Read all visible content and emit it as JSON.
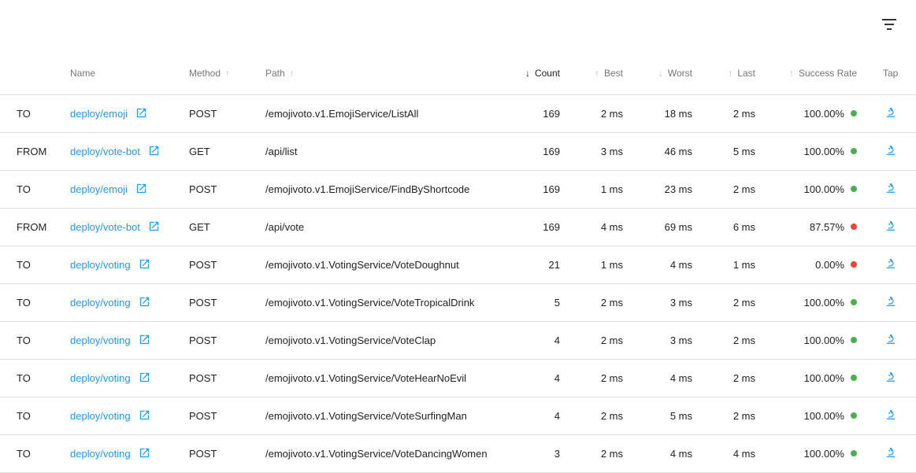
{
  "toolbar": {
    "filter_icon": "filter-list-icon"
  },
  "colors": {
    "link": "#2196f3",
    "success": "#4caf50",
    "failure": "#f44336"
  },
  "headers": {
    "direction": "",
    "name": "Name",
    "method": "Method",
    "path": "Path",
    "count": "Count",
    "best": "Best",
    "worst": "Worst",
    "last": "Last",
    "success_rate": "Success Rate",
    "tap": "Tap"
  },
  "sort": {
    "active": "Count",
    "direction": "descending"
  },
  "rows": [
    {
      "direction": "TO",
      "name": "deploy/emoji",
      "method": "POST",
      "path": "/emojivoto.v1.EmojiService/ListAll",
      "count": "169",
      "best": "2 ms",
      "worst": "18 ms",
      "last": "2 ms",
      "success_rate": "100.00%",
      "status": "success"
    },
    {
      "direction": "FROM",
      "name": "deploy/vote-bot",
      "method": "GET",
      "path": "/api/list",
      "count": "169",
      "best": "3 ms",
      "worst": "46 ms",
      "last": "5 ms",
      "success_rate": "100.00%",
      "status": "success"
    },
    {
      "direction": "TO",
      "name": "deploy/emoji",
      "method": "POST",
      "path": "/emojivoto.v1.EmojiService/FindByShortcode",
      "count": "169",
      "best": "1 ms",
      "worst": "23 ms",
      "last": "2 ms",
      "success_rate": "100.00%",
      "status": "success"
    },
    {
      "direction": "FROM",
      "name": "deploy/vote-bot",
      "method": "GET",
      "path": "/api/vote",
      "count": "169",
      "best": "4 ms",
      "worst": "69 ms",
      "last": "6 ms",
      "success_rate": "87.57%",
      "status": "failure"
    },
    {
      "direction": "TO",
      "name": "deploy/voting",
      "method": "POST",
      "path": "/emojivoto.v1.VotingService/VoteDoughnut",
      "count": "21",
      "best": "1 ms",
      "worst": "4 ms",
      "last": "1 ms",
      "success_rate": "0.00%",
      "status": "failure"
    },
    {
      "direction": "TO",
      "name": "deploy/voting",
      "method": "POST",
      "path": "/emojivoto.v1.VotingService/VoteTropicalDrink",
      "count": "5",
      "best": "2 ms",
      "worst": "3 ms",
      "last": "2 ms",
      "success_rate": "100.00%",
      "status": "success"
    },
    {
      "direction": "TO",
      "name": "deploy/voting",
      "method": "POST",
      "path": "/emojivoto.v1.VotingService/VoteClap",
      "count": "4",
      "best": "2 ms",
      "worst": "3 ms",
      "last": "2 ms",
      "success_rate": "100.00%",
      "status": "success"
    },
    {
      "direction": "TO",
      "name": "deploy/voting",
      "method": "POST",
      "path": "/emojivoto.v1.VotingService/VoteHearNoEvil",
      "count": "4",
      "best": "2 ms",
      "worst": "4 ms",
      "last": "2 ms",
      "success_rate": "100.00%",
      "status": "success"
    },
    {
      "direction": "TO",
      "name": "deploy/voting",
      "method": "POST",
      "path": "/emojivoto.v1.VotingService/VoteSurfingMan",
      "count": "4",
      "best": "2 ms",
      "worst": "5 ms",
      "last": "2 ms",
      "success_rate": "100.00%",
      "status": "success"
    },
    {
      "direction": "TO",
      "name": "deploy/voting",
      "method": "POST",
      "path": "/emojivoto.v1.VotingService/VoteDancingWomen",
      "count": "3",
      "best": "2 ms",
      "worst": "4 ms",
      "last": "4 ms",
      "success_rate": "100.00%",
      "status": "success"
    }
  ]
}
